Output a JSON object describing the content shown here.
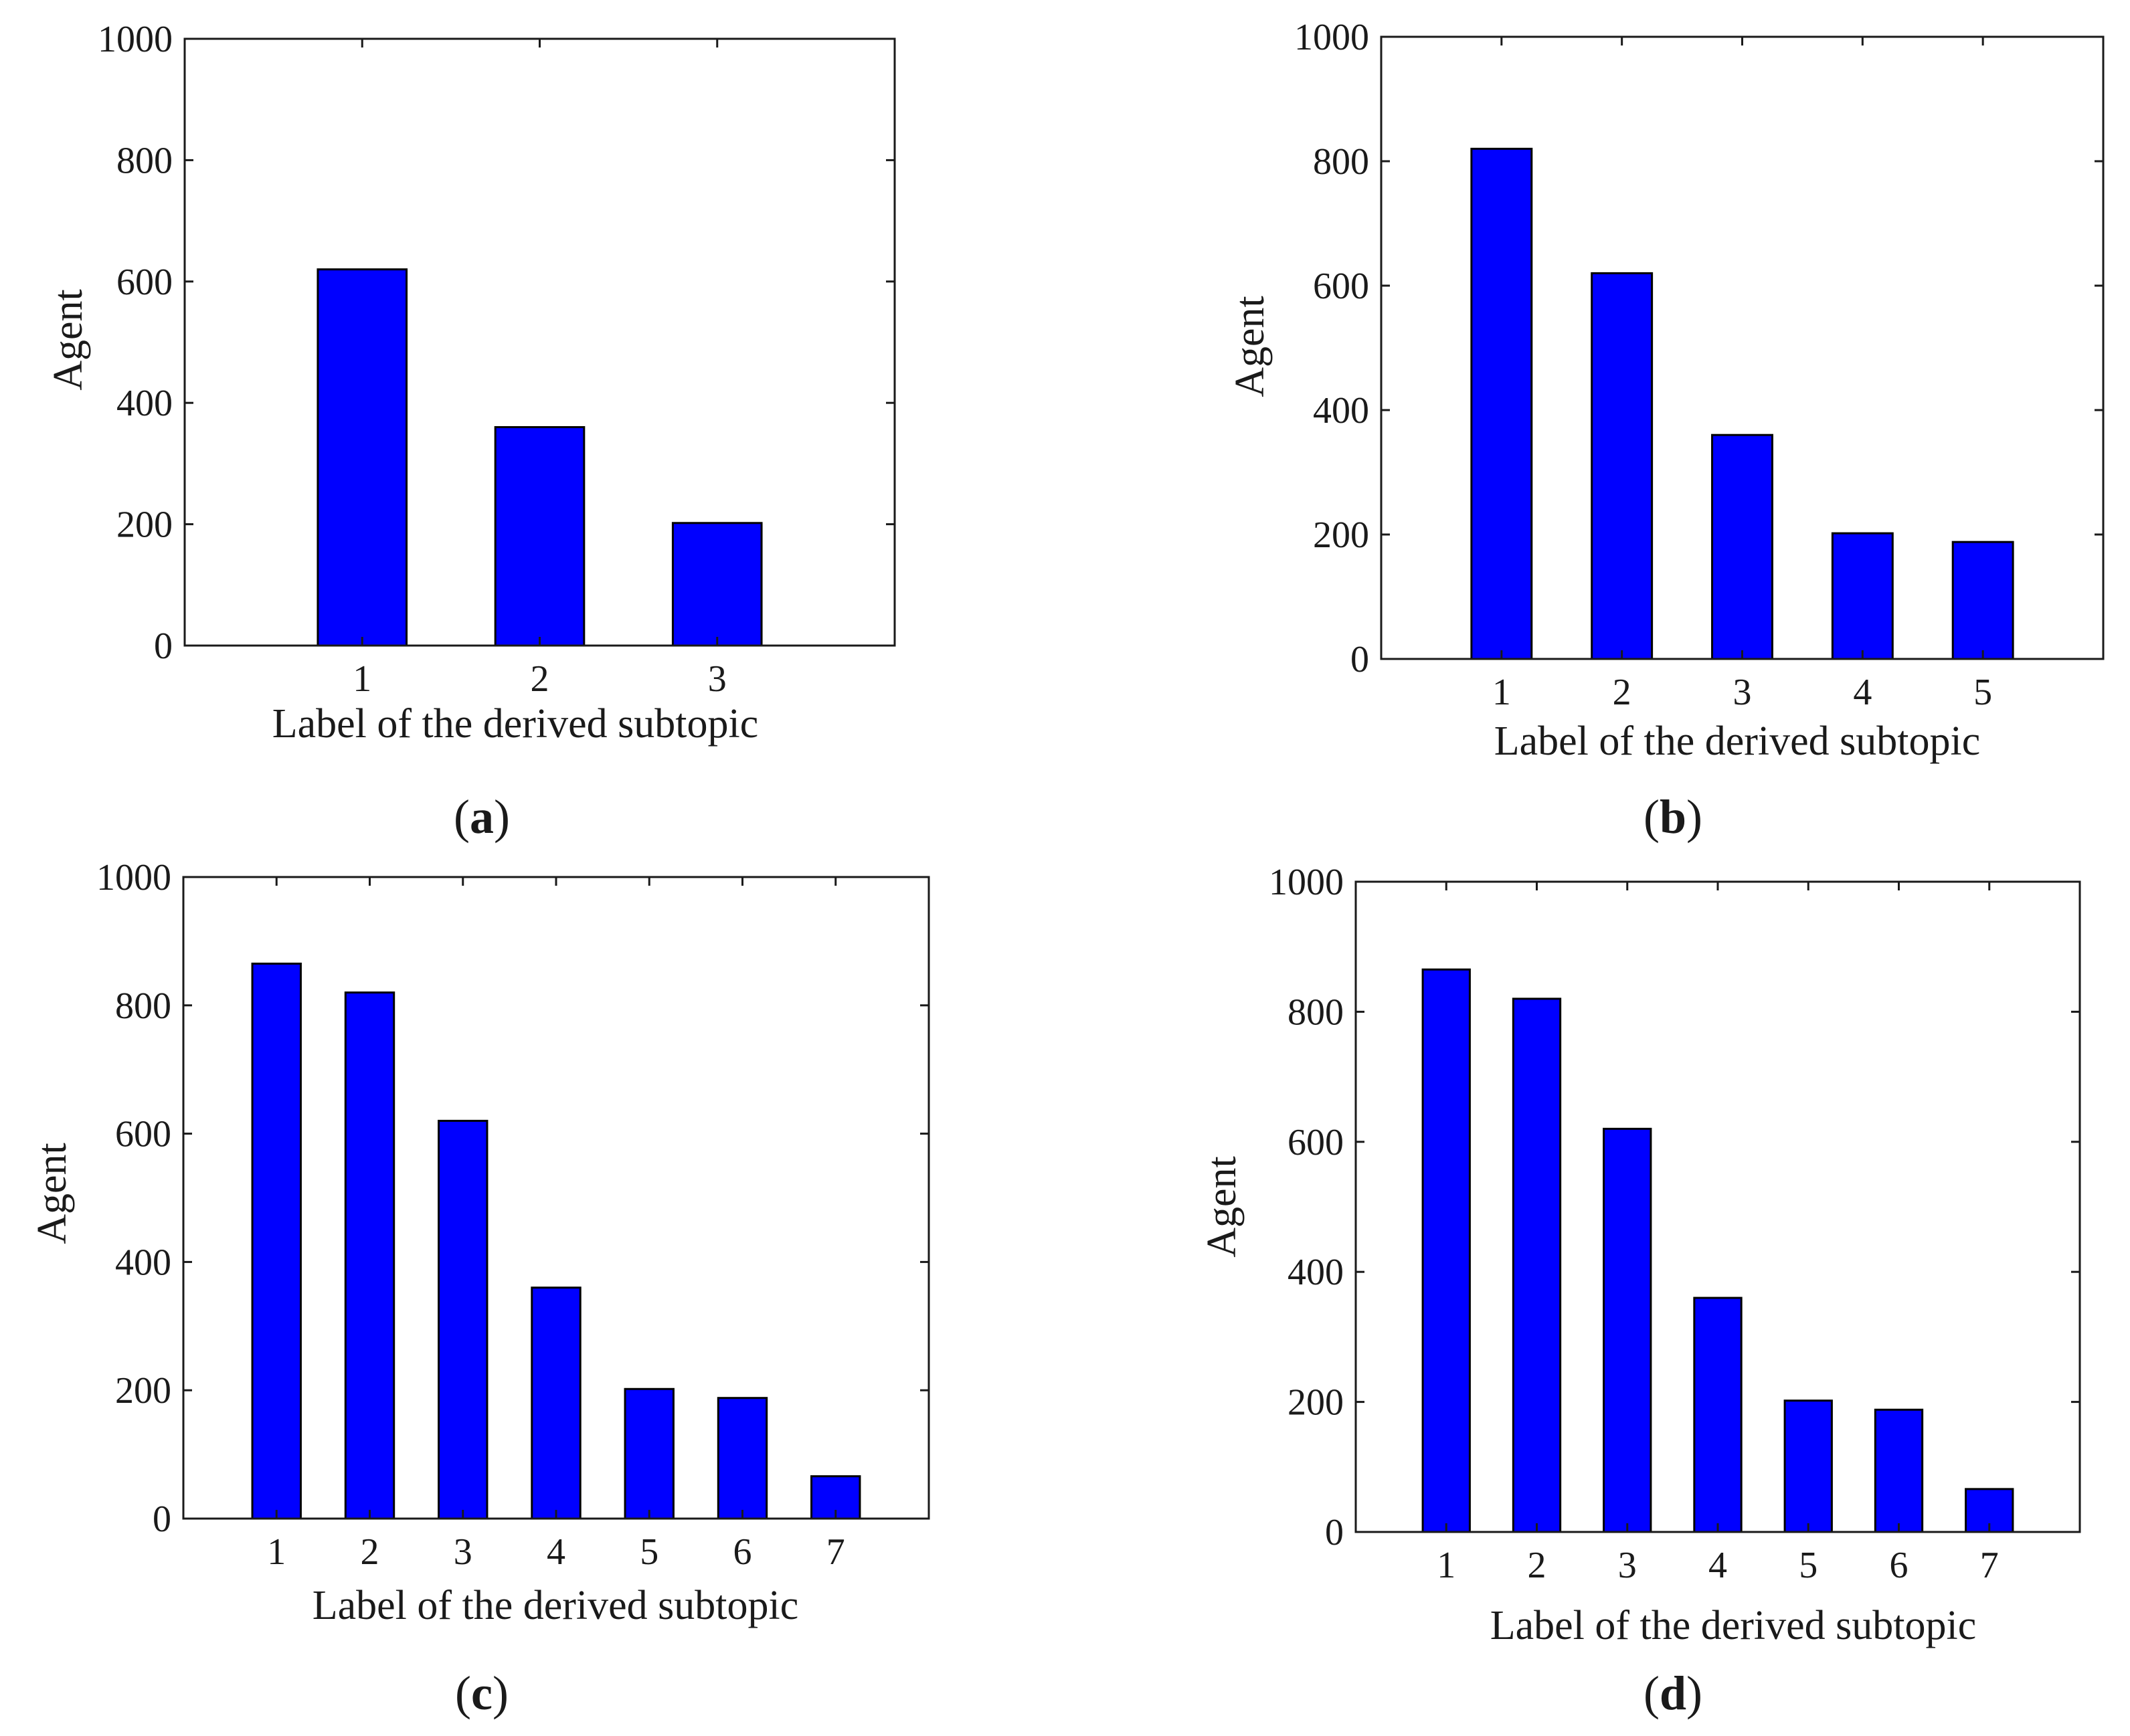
{
  "bar_color": "#0000ff",
  "bar_edge_color": "#000000",
  "chart_data": [
    {
      "id": "a",
      "type": "bar",
      "caption_letter": "a",
      "categories": [
        "1",
        "2",
        "3"
      ],
      "x_range": [
        0,
        4
      ],
      "values": [
        620,
        360,
        202
      ],
      "xlabel": "Label of the derived subtopic",
      "ylabel": "Agent",
      "ylim": [
        0,
        1000
      ],
      "yticks": [
        0,
        200,
        400,
        600,
        800,
        1000
      ]
    },
    {
      "id": "b",
      "type": "bar",
      "caption_letter": "b",
      "categories": [
        "1",
        "2",
        "3",
        "4",
        "5"
      ],
      "x_range": [
        0,
        6
      ],
      "values": [
        820,
        620,
        360,
        202,
        188
      ],
      "xlabel": "Label of the derived subtopic",
      "ylabel": "Agent",
      "ylim": [
        0,
        1000
      ],
      "yticks": [
        0,
        200,
        400,
        600,
        800,
        1000
      ]
    },
    {
      "id": "c",
      "type": "bar",
      "caption_letter": "c",
      "categories": [
        "1",
        "2",
        "3",
        "4",
        "5",
        "6",
        "7"
      ],
      "x_range": [
        0,
        8
      ],
      "values": [
        865,
        820,
        620,
        360,
        202,
        188,
        66
      ],
      "xlabel": "Label of the derived subtopic",
      "ylabel": "Agent",
      "ylim": [
        0,
        1000
      ],
      "yticks": [
        0,
        200,
        400,
        600,
        800,
        1000
      ]
    },
    {
      "id": "d",
      "type": "bar",
      "caption_letter": "d",
      "categories": [
        "1",
        "2",
        "3",
        "4",
        "5",
        "6",
        "7"
      ],
      "x_range": [
        0,
        8
      ],
      "values": [
        865,
        820,
        620,
        360,
        202,
        188,
        66
      ],
      "xlabel": "Label of the derived subtopic",
      "ylabel": "Agent",
      "ylim": [
        0,
        1000
      ],
      "yticks": [
        0,
        200,
        400,
        600,
        800,
        1000
      ]
    }
  ]
}
